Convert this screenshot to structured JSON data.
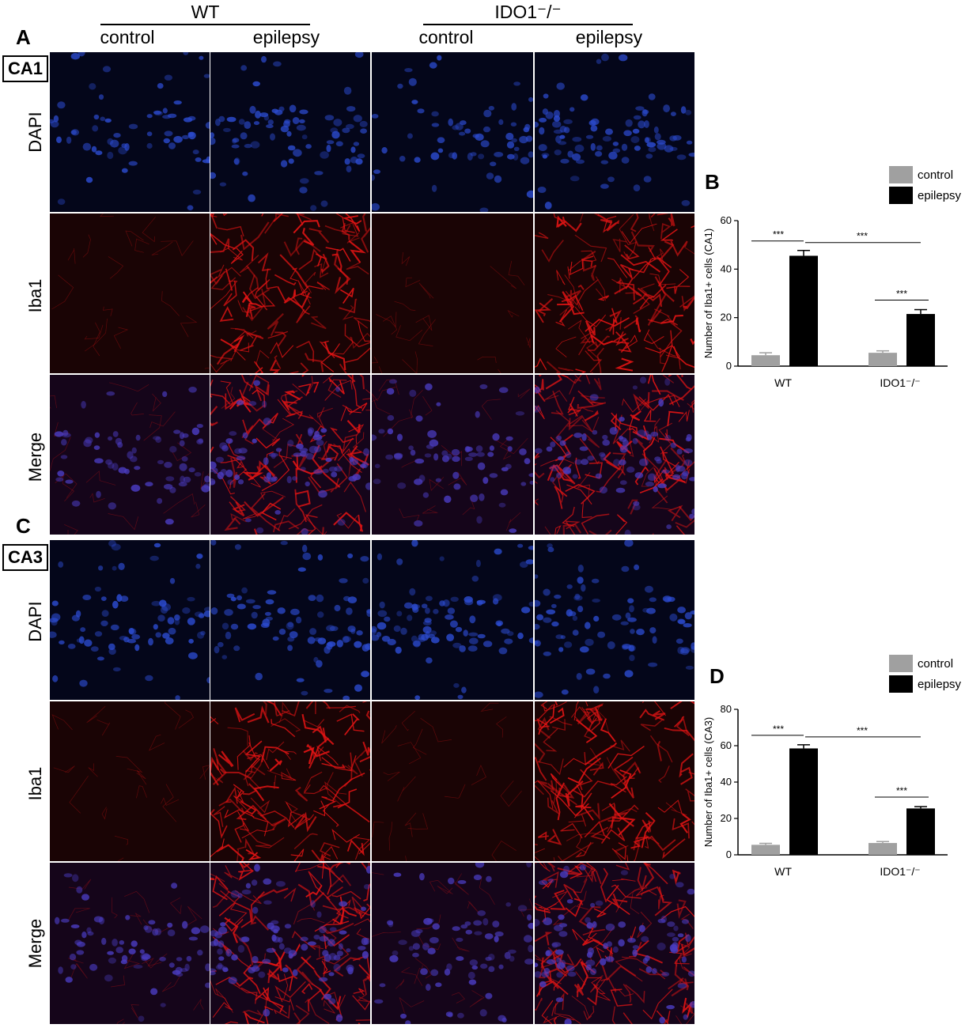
{
  "figure": {
    "panel_labels": {
      "a": "A",
      "b": "B",
      "c": "C",
      "d": "D"
    },
    "groups": {
      "wt": "WT",
      "ido1": "IDO1⁻/⁻"
    },
    "columns": [
      "control",
      "epilepsy",
      "control",
      "epilepsy"
    ],
    "regions": {
      "ca1": "CA1",
      "ca3": "CA3"
    },
    "rows": [
      "DAPI",
      "Iba1",
      "Merge"
    ],
    "colors": {
      "dapi": "#1a2f8f",
      "iba1": "#e01414",
      "control_bar": "#a0a0a0",
      "epilepsy_bar": "#000000"
    }
  },
  "chart_data": [
    {
      "type": "bar",
      "panel": "B",
      "categories": [
        "WT",
        "IDO1⁻/⁻"
      ],
      "series": [
        {
          "name": "control",
          "values": [
            4.5,
            5.5
          ],
          "errors": [
            1.0,
            0.8
          ]
        },
        {
          "name": "epilepsy",
          "values": [
            45.5,
            21.5
          ],
          "errors": [
            2.2,
            1.8
          ]
        }
      ],
      "ylabel": "Number of Iba1+ cells (CA1)",
      "ylim": [
        0,
        60
      ],
      "yticks": [
        0,
        20,
        40,
        60
      ],
      "significance": [
        {
          "text": "***",
          "between": "WT control - WT epilepsy"
        },
        {
          "text": "***",
          "between": "WT epilepsy - IDO1 epilepsy"
        },
        {
          "text": "***",
          "between": "IDO1 control - IDO1 epilepsy"
        }
      ],
      "legend": [
        "control",
        "epilepsy"
      ],
      "legend_position": "top-right"
    },
    {
      "type": "bar",
      "panel": "D",
      "categories": [
        "WT",
        "IDO1⁻/⁻"
      ],
      "series": [
        {
          "name": "control",
          "values": [
            5.5,
            6.5
          ],
          "errors": [
            0.8,
            0.8
          ]
        },
        {
          "name": "epilepsy",
          "values": [
            58.5,
            25.5
          ],
          "errors": [
            2.0,
            1.0
          ]
        }
      ],
      "ylabel": "Number of Iba1+ cells (CA3)",
      "ylim": [
        0,
        80
      ],
      "yticks": [
        0,
        20,
        40,
        60,
        80
      ],
      "significance": [
        {
          "text": "***",
          "between": "WT control - WT epilepsy"
        },
        {
          "text": "***",
          "between": "WT epilepsy - IDO1 epilepsy"
        },
        {
          "text": "***",
          "between": "IDO1 control - IDO1 epilepsy"
        }
      ],
      "legend": [
        "control",
        "epilepsy"
      ],
      "legend_position": "top-right"
    }
  ]
}
